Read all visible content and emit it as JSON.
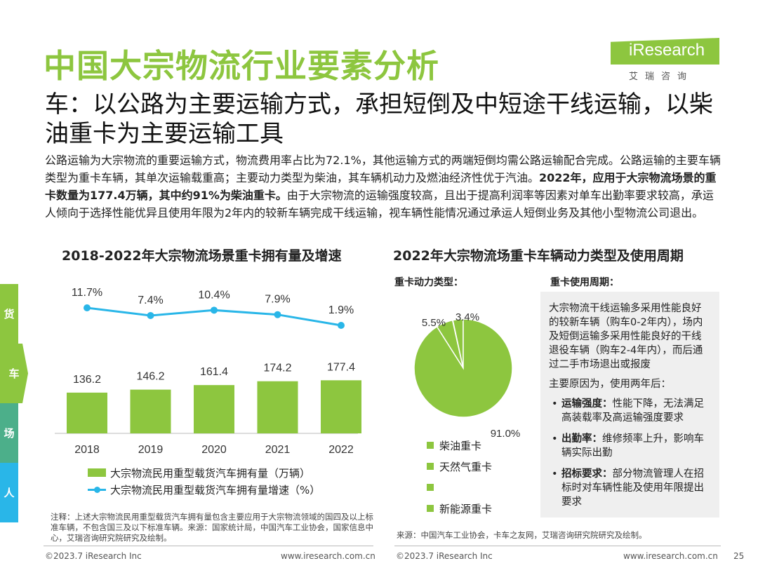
{
  "header": {
    "title": "中国大宗物流行业要素分析",
    "subtitle": "车：以公路为主要运输方式，承担短倒及中短途干线运输，以柴油重卡为主要运输工具"
  },
  "logo": {
    "word": "iResearch",
    "sub": "艾瑞咨询"
  },
  "intro": {
    "text1": "公路运输为大宗物流的重要运输方式，物流费用率占比为72.1%，其他运输方式的两端短倒均需公路运输配合完成。公路运输的主要车辆类型为重卡车辆，其单次运输载重高；主要动力类型为柴油，其车辆机动力及燃油经济性优于汽油。",
    "bold": "2022年，应用于大宗物流场景的重卡数量为177.4万辆，其中约91%为柴油重卡。",
    "text2": "由于大宗物流的运输强度较高，且出于提高利润率等因素对单车出勤率要求较高，承运人倾向于选择性能优异且使用年限为2年内的较新车辆完成干线运输，视车辆性能情况通过承运人短倒业务及其他小型物流公司退出。"
  },
  "side_tabs": [
    {
      "label": "货",
      "color": "#8dc63f"
    },
    {
      "label": "车",
      "color": "#8dc63f",
      "active": true
    },
    {
      "label": "场",
      "color": "#4caf8a"
    },
    {
      "label": "人",
      "color": "#29b6e8"
    }
  ],
  "chart_data": [
    {
      "type": "bar",
      "title": "2018-2022年大宗物流场景重卡拥有量及增速",
      "categories": [
        "2018",
        "2019",
        "2020",
        "2021",
        "2022"
      ],
      "series": [
        {
          "name": "大宗物流民用重型载货汽车拥有量（万辆）",
          "type": "bar",
          "values": [
            136.2,
            146.2,
            161.4,
            174.2,
            177.4
          ],
          "labels": [
            "136.2",
            "146.2",
            "161.4",
            "174.2",
            "177.4"
          ],
          "color": "#8dc63f"
        },
        {
          "name": "大宗物流民用重型载货汽车拥有量增速（%）",
          "type": "line",
          "values": [
            11.7,
            7.4,
            10.4,
            7.9,
            1.9
          ],
          "labels": [
            "11.7%",
            "7.4%",
            "10.4%",
            "7.9%",
            "1.9%"
          ],
          "color": "#29b6e8"
        }
      ]
    },
    {
      "type": "pie",
      "title": "2022年大宗物流场重卡车辆动力类型及使用周期",
      "subtitle": "重卡动力类型：",
      "slices": [
        {
          "name": "柴油重卡",
          "value": 91.0,
          "label": "91.0%",
          "color": "#8dc63f"
        },
        {
          "name": "天然气重卡",
          "value": 5.5,
          "label": "5.5%",
          "color": "#8dc63f"
        },
        {
          "name": "",
          "value": 0.1,
          "label": "",
          "color": "#8dc63f"
        },
        {
          "name": "新能源重卡",
          "value": 3.4,
          "label": "3.4%",
          "color": "#8dc63f"
        }
      ]
    }
  ],
  "legend_right": [
    "柴油重卡",
    "天然气重卡",
    "",
    "新能源重卡"
  ],
  "cycle": {
    "heading": "重卡使用周期：",
    "p1": "大宗物流干线运输多采用性能良好的较新车辆（购车0-2年内），场内及短倒运输多采用性能良好的干线退役车辆（购车2-4年内），而后通过二手市场退出或报废",
    "p2": "主要原因为，使用两年后：",
    "items": [
      {
        "bold": "运输强度：",
        "text": "性能下降，无法满足高装载率及高运输强度要求"
      },
      {
        "bold": "出勤率：",
        "text": "维修频率上升，影响车辆实际出勤"
      },
      {
        "bold": "招标要求：",
        "text": "部分物流管理人在招标时对车辆性能及使用年限提出要求"
      }
    ]
  },
  "notes": {
    "left": "注释：上述大宗物流民用重型载货汽车拥有量包含主要应用于大宗物流领域的国四及以上标准车辆，不包含国三及以下标准车辆。来源：国家统计局，中国汽车工业协会，国家信息中心，艾瑞咨询研究院研究及绘制。",
    "right": "来源：中国汽车工业协会，卡车之友网，艾瑞咨询研究院研究及绘制。"
  },
  "footer": {
    "copy_left": "©2023.7 iResearch Inc",
    "url_left": "www.iresearch.com.cn",
    "copy_right": "©2023.7 iResearch Inc",
    "url_right": "www.iresearch.com.cn",
    "page": "25"
  }
}
